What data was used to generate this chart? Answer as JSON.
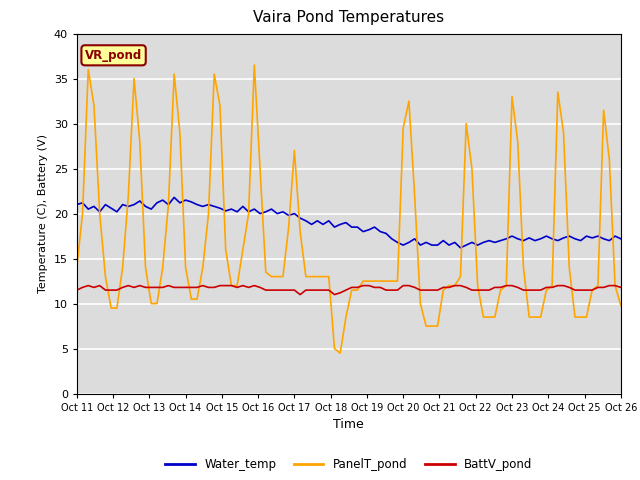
{
  "title": "Vaira Pond Temperatures",
  "xlabel": "Time",
  "ylabel": "Temperature (C), Battery (V)",
  "ylim": [
    0,
    40
  ],
  "yticks": [
    0,
    5,
    10,
    15,
    20,
    25,
    30,
    35,
    40
  ],
  "xtick_labels": [
    "Oct 11",
    "Oct 12",
    "Oct 13",
    "Oct 14",
    "Oct 15",
    "Oct 16",
    "Oct 17",
    "Oct 18",
    "Oct 19",
    "Oct 20",
    "Oct 21",
    "Oct 22",
    "Oct 23",
    "Oct 24",
    "Oct 25",
    "Oct 26"
  ],
  "annotation_text": "VR_pond",
  "annotation_bg": "#ffff99",
  "annotation_border": "#8b0000",
  "water_color": "#0000cc",
  "panel_color": "#ffa500",
  "batt_color": "#cc0000",
  "bg_color": "#dcdcdc",
  "water_temp": [
    21.0,
    21.2,
    20.5,
    20.8,
    20.2,
    21.0,
    20.6,
    20.2,
    21.0,
    20.8,
    21.0,
    21.4,
    20.8,
    20.5,
    21.2,
    21.5,
    21.0,
    21.8,
    21.2,
    21.5,
    21.3,
    21.0,
    20.8,
    21.0,
    20.8,
    20.6,
    20.3,
    20.5,
    20.2,
    20.8,
    20.2,
    20.5,
    20.0,
    20.2,
    20.5,
    20.0,
    20.2,
    19.8,
    20.0,
    19.5,
    19.2,
    18.8,
    19.2,
    18.8,
    19.2,
    18.5,
    18.8,
    19.0,
    18.5,
    18.5,
    18.0,
    18.2,
    18.5,
    18.0,
    17.8,
    17.2,
    16.8,
    16.5,
    16.8,
    17.2,
    16.5,
    16.8,
    16.5,
    16.5,
    17.0,
    16.5,
    16.8,
    16.2,
    16.5,
    16.8,
    16.5,
    16.8,
    17.0,
    16.8,
    17.0,
    17.2,
    17.5,
    17.2,
    17.0,
    17.3,
    17.0,
    17.2,
    17.5,
    17.2,
    17.0,
    17.3,
    17.5,
    17.2,
    17.0,
    17.5,
    17.3,
    17.5,
    17.2,
    17.0,
    17.5,
    17.2
  ],
  "panel_temp": [
    14.0,
    20.0,
    36.0,
    32.0,
    20.0,
    13.0,
    9.5,
    9.5,
    14.0,
    22.0,
    35.0,
    28.0,
    14.0,
    10.0,
    10.0,
    14.0,
    21.0,
    35.5,
    29.0,
    14.0,
    10.5,
    10.5,
    14.0,
    20.0,
    35.5,
    32.0,
    16.0,
    12.0,
    12.0,
    16.0,
    20.0,
    36.5,
    25.0,
    13.5,
    13.0,
    13.0,
    13.0,
    18.5,
    27.0,
    18.0,
    13.0,
    13.0,
    13.0,
    13.0,
    13.0,
    5.0,
    4.5,
    8.5,
    11.5,
    11.5,
    12.5,
    12.5,
    12.5,
    12.5,
    12.5,
    12.5,
    12.5,
    29.5,
    32.5,
    22.0,
    10.0,
    7.5,
    7.5,
    7.5,
    11.5,
    12.0,
    12.0,
    13.0,
    30.0,
    25.0,
    12.0,
    8.5,
    8.5,
    8.5,
    11.5,
    12.0,
    33.0,
    28.0,
    14.0,
    8.5,
    8.5,
    8.5,
    11.5,
    12.0,
    33.5,
    29.0,
    14.0,
    8.5,
    8.5,
    8.5,
    11.5,
    12.0,
    31.5,
    26.0,
    12.0,
    9.8
  ],
  "batt_v": [
    11.5,
    11.8,
    12.0,
    11.8,
    12.0,
    11.5,
    11.5,
    11.5,
    11.8,
    12.0,
    11.8,
    12.0,
    11.8,
    11.8,
    11.8,
    11.8,
    12.0,
    11.8,
    11.8,
    11.8,
    11.8,
    11.8,
    12.0,
    11.8,
    11.8,
    12.0,
    12.0,
    12.0,
    11.8,
    12.0,
    11.8,
    12.0,
    11.8,
    11.5,
    11.5,
    11.5,
    11.5,
    11.5,
    11.5,
    11.0,
    11.5,
    11.5,
    11.5,
    11.5,
    11.5,
    11.0,
    11.2,
    11.5,
    11.8,
    11.8,
    12.0,
    12.0,
    11.8,
    11.8,
    11.5,
    11.5,
    11.5,
    12.0,
    12.0,
    11.8,
    11.5,
    11.5,
    11.5,
    11.5,
    11.8,
    11.8,
    12.0,
    12.0,
    11.8,
    11.5,
    11.5,
    11.5,
    11.5,
    11.8,
    11.8,
    12.0,
    12.0,
    11.8,
    11.5,
    11.5,
    11.5,
    11.5,
    11.8,
    11.8,
    12.0,
    12.0,
    11.8,
    11.5,
    11.5,
    11.5,
    11.5,
    11.8,
    11.8,
    12.0,
    12.0,
    11.8
  ]
}
